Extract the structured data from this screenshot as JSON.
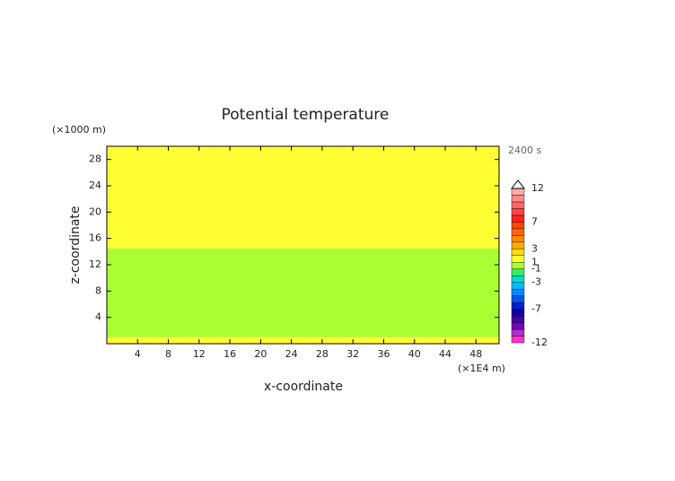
{
  "chart_data": {
    "type": "contour",
    "title": "Potential temperature",
    "xlabel": "x-coordinate",
    "ylabel": "z-coordinate",
    "x_unit": "(×1E4 m)",
    "y_unit": "(×1000 m)",
    "time_label": "2400 s",
    "xlim": [
      0,
      51
    ],
    "ylim": [
      0,
      30
    ],
    "xticks": [
      4,
      8,
      12,
      16,
      20,
      24,
      28,
      32,
      36,
      40,
      44,
      48
    ],
    "yticks": [
      4,
      8,
      12,
      16,
      20,
      24,
      28
    ],
    "layers": [
      {
        "zlim": [
          0,
          1
        ],
        "value": 1.5
      },
      {
        "zlim": [
          1,
          14.5
        ],
        "value": 0
      },
      {
        "zlim": [
          14.5,
          30
        ],
        "value": 1.5
      }
    ],
    "colorbar": {
      "boundaries": [
        -12,
        -11,
        -10,
        -9,
        -8,
        -7,
        -6,
        -5,
        -4,
        -3,
        -2,
        -1,
        1,
        2,
        3,
        4,
        5,
        6,
        7,
        8,
        9,
        10,
        11,
        12
      ],
      "colors": [
        "#ff33cc",
        "#aa33cc",
        "#7700bb",
        "#4400aa",
        "#1100aa",
        "#0022cc",
        "#0055ee",
        "#0088ff",
        "#00bbff",
        "#00ddcc",
        "#33ee66",
        "#aaff33",
        "#ffff33",
        "#ffdd00",
        "#ffaa00",
        "#ff8800",
        "#ff6600",
        "#ff4400",
        "#ff2222",
        "#ff4444",
        "#ff6666",
        "#ff8888",
        "#ffaaaa"
      ],
      "ticks": [
        12,
        7,
        3,
        1,
        -1,
        -3,
        -7,
        -12
      ]
    }
  }
}
